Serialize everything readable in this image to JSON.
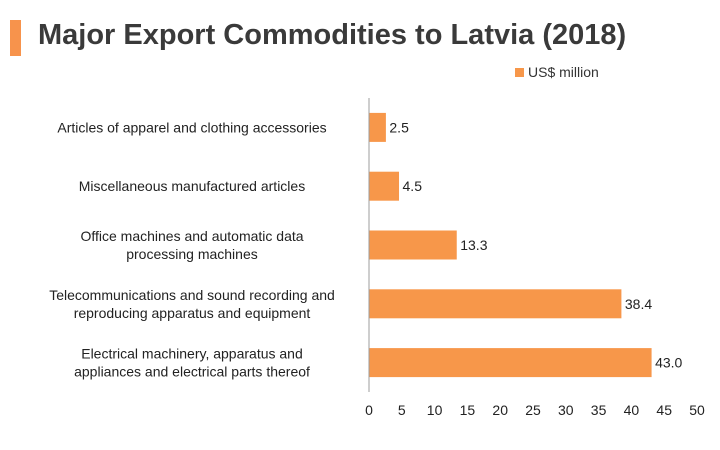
{
  "title": "Major Export Commodities to Latvia (2018)",
  "colors": {
    "accent": "#F7934C",
    "bar": "#F7974A",
    "axis": "#9E9E9E",
    "text": "#222222"
  },
  "chart_data": {
    "type": "bar",
    "orientation": "horizontal",
    "legend_position": "top-right",
    "grid": false,
    "xlim": [
      0,
      50
    ],
    "x_ticks": [
      "0",
      "5",
      "10",
      "15",
      "20",
      "25",
      "30",
      "35",
      "40",
      "45",
      "50"
    ],
    "categories": [
      [
        "Articles of apparel and clothing accessories"
      ],
      [
        "Miscellaneous manufactured articles"
      ],
      [
        "Office machines and automatic data",
        "processing machines"
      ],
      [
        "Telecommunications and sound recording and",
        "reproducing apparatus and equipment"
      ],
      [
        "Electrical machinery, apparatus and",
        "appliances and electrical parts thereof"
      ]
    ],
    "series": [
      {
        "name": "US$ million",
        "values": [
          2.5,
          4.5,
          13.3,
          38.4,
          43.0
        ],
        "labels": [
          "2.5",
          "4.5",
          "13.3",
          "38.4",
          "43.0"
        ]
      }
    ]
  }
}
